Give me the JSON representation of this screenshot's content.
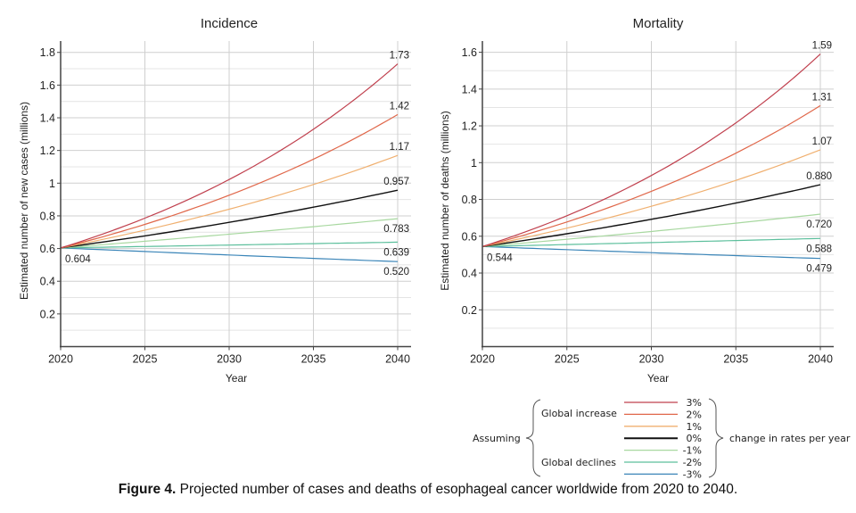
{
  "chart_data": [
    {
      "type": "line",
      "title": "Incidence",
      "xlabel": "Year",
      "ylabel": "Estimated number of new cases (millions)",
      "xlim": [
        2020,
        2040
      ],
      "ylim": [
        0,
        1.85
      ],
      "xticks": [
        2020,
        2025,
        2030,
        2035,
        2040
      ],
      "yticks": [
        0.2,
        0.4,
        0.6,
        0.8,
        1,
        1.2,
        1.4,
        1.6,
        1.8
      ],
      "ytick_labels": [
        "0.2",
        "0.4",
        "0.6",
        "0.8",
        "1",
        "1.2",
        "1.4",
        "1.6",
        "1.8"
      ],
      "grid": true,
      "start_value": 0.604,
      "start_label": "0.604",
      "series": [
        {
          "name": "3%",
          "rate": 0.03,
          "start": 0.604,
          "end": 1.73,
          "end_label": "1.73"
        },
        {
          "name": "2%",
          "rate": 0.02,
          "start": 0.604,
          "end": 1.42,
          "end_label": "1.42"
        },
        {
          "name": "1%",
          "rate": 0.01,
          "start": 0.604,
          "end": 1.17,
          "end_label": "1.17"
        },
        {
          "name": "0%",
          "rate": 0.0,
          "start": 0.604,
          "end": 0.957,
          "end_label": "0.957"
        },
        {
          "name": "-1%",
          "rate": -0.01,
          "start": 0.604,
          "end": 0.783,
          "end_label": "0.783"
        },
        {
          "name": "-2%",
          "rate": -0.02,
          "start": 0.604,
          "end": 0.639,
          "end_label": "0.639"
        },
        {
          "name": "-3%",
          "rate": -0.03,
          "start": 0.604,
          "end": 0.52,
          "end_label": "0.520"
        }
      ]
    },
    {
      "type": "line",
      "title": "Mortality",
      "xlabel": "Year",
      "ylabel": "Estimated number of deaths (millions)",
      "xlim": [
        2020,
        2040
      ],
      "ylim": [
        0,
        1.65
      ],
      "xticks": [
        2020,
        2025,
        2030,
        2035,
        2040
      ],
      "yticks": [
        0.2,
        0.4,
        0.6,
        0.8,
        1,
        1.2,
        1.4,
        1.6
      ],
      "ytick_labels": [
        "0.2",
        "0.4",
        "0.6",
        "0.8",
        "1",
        "1.2",
        "1.4",
        "1.6"
      ],
      "grid": true,
      "start_value": 0.544,
      "start_label": "0.544",
      "series": [
        {
          "name": "3%",
          "rate": 0.03,
          "start": 0.544,
          "end": 1.59,
          "end_label": "1.59"
        },
        {
          "name": "2%",
          "rate": 0.02,
          "start": 0.544,
          "end": 1.31,
          "end_label": "1.31"
        },
        {
          "name": "1%",
          "rate": 0.01,
          "start": 0.544,
          "end": 1.07,
          "end_label": "1.07"
        },
        {
          "name": "0%",
          "rate": 0.0,
          "start": 0.544,
          "end": 0.88,
          "end_label": "0.880"
        },
        {
          "name": "-1%",
          "rate": -0.01,
          "start": 0.544,
          "end": 0.72,
          "end_label": "0.720"
        },
        {
          "name": "-2%",
          "rate": -0.02,
          "start": 0.544,
          "end": 0.588,
          "end_label": "0.588"
        },
        {
          "name": "-3%",
          "rate": -0.03,
          "start": 0.544,
          "end": 0.479,
          "end_label": "0.479"
        }
      ]
    }
  ],
  "series_colors": {
    "3%": "#c0404e",
    "2%": "#e0674a",
    "1%": "#f0b070",
    "0%": "#111111",
    "-1%": "#a8d8a0",
    "-2%": "#5cbf9c",
    "-3%": "#3a85b8"
  },
  "legend": {
    "assuming": "Assuming",
    "group_increase": "Global increase",
    "group_declines": "Global declines",
    "suffix": "change in rates per year",
    "entries": [
      "3%",
      "2%",
      "1%",
      "0%",
      "-1%",
      "-2%",
      "-3%"
    ]
  },
  "caption": {
    "label": "Figure 4.",
    "text": " Projected number of cases and deaths of esophageal cancer worldwide from 2020 to 2040."
  }
}
